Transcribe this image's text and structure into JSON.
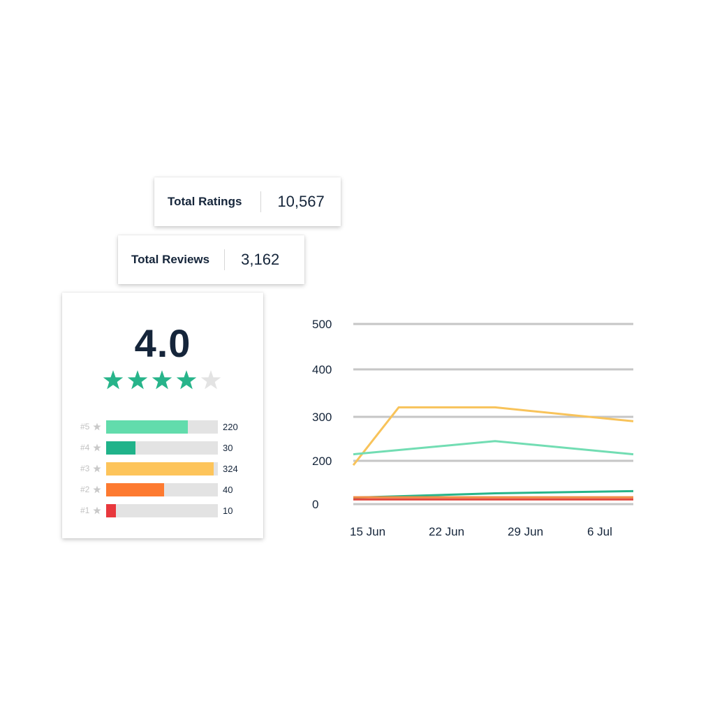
{
  "stats": {
    "total_ratings": {
      "label": "Total Ratings",
      "value": "10,567"
    },
    "total_reviews": {
      "label": "Total Reviews",
      "value": "3,162"
    }
  },
  "rating_summary": {
    "average": "4.0",
    "stars_filled": 4,
    "stars_total": 5,
    "star_color": "#27b48a",
    "star_empty_color": "#e3e3e3",
    "distribution": [
      {
        "label": "#5",
        "count": "220",
        "fill_fraction": 0.73,
        "color": "#62dcac"
      },
      {
        "label": "#4",
        "count": "30",
        "fill_fraction": 0.26,
        "color": "#20b38a"
      },
      {
        "label": "#3",
        "count": "324",
        "fill_fraction": 0.96,
        "color": "#fdc45a"
      },
      {
        "label": "#2",
        "count": "40",
        "fill_fraction": 0.52,
        "color": "#fd7a30"
      },
      {
        "label": "#1",
        "count": "10",
        "fill_fraction": 0.09,
        "color": "#e8383d"
      }
    ]
  },
  "chart_data": {
    "type": "line",
    "x": [
      "15 Jun",
      "17 Jun",
      "22 Jun",
      "27 Jun",
      "29 Jun",
      "6 Jul",
      "9 Jul"
    ],
    "x_tick_labels": [
      "15 Jun",
      "22 Jun",
      "29 Jun",
      "6 Jul"
    ],
    "y_tick_labels": [
      "0",
      "200",
      "300",
      "400",
      "500"
    ],
    "y_ticks": [
      0,
      200,
      300,
      400,
      500
    ],
    "grid": true,
    "series": [
      {
        "color": "#f8c35a",
        "points": [
          [
            "15 Jun",
            180
          ],
          [
            "17 Jun",
            320
          ],
          [
            "27 Jun",
            320
          ],
          [
            "9 Jul",
            290
          ]
        ]
      },
      {
        "color": "#72ddb3",
        "points": [
          [
            "15 Jun",
            215
          ],
          [
            "27 Jun",
            245
          ],
          [
            "9 Jul",
            215
          ]
        ]
      },
      {
        "color": "#27b48a",
        "points": [
          [
            "15 Jun",
            30
          ],
          [
            "27 Jun",
            50
          ],
          [
            "9 Jul",
            60
          ]
        ]
      },
      {
        "color": "#f28b44",
        "points": [
          [
            "15 Jun",
            32
          ],
          [
            "9 Jul",
            32
          ]
        ]
      },
      {
        "color": "#e0463c",
        "points": [
          [
            "15 Jun",
            22
          ],
          [
            "9 Jul",
            22
          ]
        ]
      }
    ]
  }
}
